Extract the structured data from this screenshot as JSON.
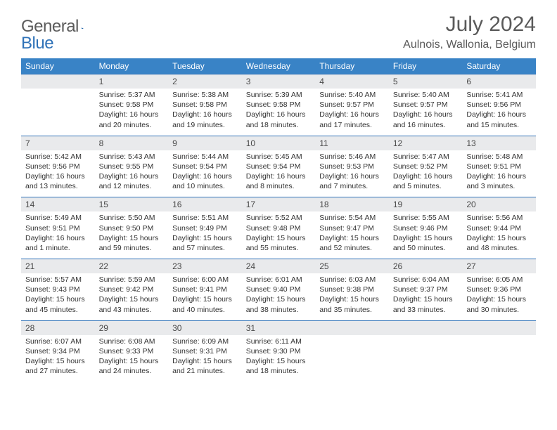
{
  "logo": {
    "part1": "General",
    "part2": "Blue"
  },
  "title": "July 2024",
  "location": "Aulnois, Wallonia, Belgium",
  "colors": {
    "header_bg": "#3983c6",
    "header_text": "#ffffff",
    "numrow_bg": "#e9eaec",
    "border": "#2f72b8",
    "body_text": "#333333",
    "logo_gray": "#5b5b5b",
    "logo_blue": "#2f72b8"
  },
  "dow": [
    "Sunday",
    "Monday",
    "Tuesday",
    "Wednesday",
    "Thursday",
    "Friday",
    "Saturday"
  ],
  "weeks": [
    {
      "nums": [
        "",
        "1",
        "2",
        "3",
        "4",
        "5",
        "6"
      ],
      "cells": [
        null,
        {
          "sr": "Sunrise: 5:37 AM",
          "ss": "Sunset: 9:58 PM",
          "dl": "Daylight: 16 hours and 20 minutes."
        },
        {
          "sr": "Sunrise: 5:38 AM",
          "ss": "Sunset: 9:58 PM",
          "dl": "Daylight: 16 hours and 19 minutes."
        },
        {
          "sr": "Sunrise: 5:39 AM",
          "ss": "Sunset: 9:58 PM",
          "dl": "Daylight: 16 hours and 18 minutes."
        },
        {
          "sr": "Sunrise: 5:40 AM",
          "ss": "Sunset: 9:57 PM",
          "dl": "Daylight: 16 hours and 17 minutes."
        },
        {
          "sr": "Sunrise: 5:40 AM",
          "ss": "Sunset: 9:57 PM",
          "dl": "Daylight: 16 hours and 16 minutes."
        },
        {
          "sr": "Sunrise: 5:41 AM",
          "ss": "Sunset: 9:56 PM",
          "dl": "Daylight: 16 hours and 15 minutes."
        }
      ]
    },
    {
      "nums": [
        "7",
        "8",
        "9",
        "10",
        "11",
        "12",
        "13"
      ],
      "cells": [
        {
          "sr": "Sunrise: 5:42 AM",
          "ss": "Sunset: 9:56 PM",
          "dl": "Daylight: 16 hours and 13 minutes."
        },
        {
          "sr": "Sunrise: 5:43 AM",
          "ss": "Sunset: 9:55 PM",
          "dl": "Daylight: 16 hours and 12 minutes."
        },
        {
          "sr": "Sunrise: 5:44 AM",
          "ss": "Sunset: 9:54 PM",
          "dl": "Daylight: 16 hours and 10 minutes."
        },
        {
          "sr": "Sunrise: 5:45 AM",
          "ss": "Sunset: 9:54 PM",
          "dl": "Daylight: 16 hours and 8 minutes."
        },
        {
          "sr": "Sunrise: 5:46 AM",
          "ss": "Sunset: 9:53 PM",
          "dl": "Daylight: 16 hours and 7 minutes."
        },
        {
          "sr": "Sunrise: 5:47 AM",
          "ss": "Sunset: 9:52 PM",
          "dl": "Daylight: 16 hours and 5 minutes."
        },
        {
          "sr": "Sunrise: 5:48 AM",
          "ss": "Sunset: 9:51 PM",
          "dl": "Daylight: 16 hours and 3 minutes."
        }
      ]
    },
    {
      "nums": [
        "14",
        "15",
        "16",
        "17",
        "18",
        "19",
        "20"
      ],
      "cells": [
        {
          "sr": "Sunrise: 5:49 AM",
          "ss": "Sunset: 9:51 PM",
          "dl": "Daylight: 16 hours and 1 minute."
        },
        {
          "sr": "Sunrise: 5:50 AM",
          "ss": "Sunset: 9:50 PM",
          "dl": "Daylight: 15 hours and 59 minutes."
        },
        {
          "sr": "Sunrise: 5:51 AM",
          "ss": "Sunset: 9:49 PM",
          "dl": "Daylight: 15 hours and 57 minutes."
        },
        {
          "sr": "Sunrise: 5:52 AM",
          "ss": "Sunset: 9:48 PM",
          "dl": "Daylight: 15 hours and 55 minutes."
        },
        {
          "sr": "Sunrise: 5:54 AM",
          "ss": "Sunset: 9:47 PM",
          "dl": "Daylight: 15 hours and 52 minutes."
        },
        {
          "sr": "Sunrise: 5:55 AM",
          "ss": "Sunset: 9:46 PM",
          "dl": "Daylight: 15 hours and 50 minutes."
        },
        {
          "sr": "Sunrise: 5:56 AM",
          "ss": "Sunset: 9:44 PM",
          "dl": "Daylight: 15 hours and 48 minutes."
        }
      ]
    },
    {
      "nums": [
        "21",
        "22",
        "23",
        "24",
        "25",
        "26",
        "27"
      ],
      "cells": [
        {
          "sr": "Sunrise: 5:57 AM",
          "ss": "Sunset: 9:43 PM",
          "dl": "Daylight: 15 hours and 45 minutes."
        },
        {
          "sr": "Sunrise: 5:59 AM",
          "ss": "Sunset: 9:42 PM",
          "dl": "Daylight: 15 hours and 43 minutes."
        },
        {
          "sr": "Sunrise: 6:00 AM",
          "ss": "Sunset: 9:41 PM",
          "dl": "Daylight: 15 hours and 40 minutes."
        },
        {
          "sr": "Sunrise: 6:01 AM",
          "ss": "Sunset: 9:40 PM",
          "dl": "Daylight: 15 hours and 38 minutes."
        },
        {
          "sr": "Sunrise: 6:03 AM",
          "ss": "Sunset: 9:38 PM",
          "dl": "Daylight: 15 hours and 35 minutes."
        },
        {
          "sr": "Sunrise: 6:04 AM",
          "ss": "Sunset: 9:37 PM",
          "dl": "Daylight: 15 hours and 33 minutes."
        },
        {
          "sr": "Sunrise: 6:05 AM",
          "ss": "Sunset: 9:36 PM",
          "dl": "Daylight: 15 hours and 30 minutes."
        }
      ]
    },
    {
      "nums": [
        "28",
        "29",
        "30",
        "31",
        "",
        "",
        ""
      ],
      "cells": [
        {
          "sr": "Sunrise: 6:07 AM",
          "ss": "Sunset: 9:34 PM",
          "dl": "Daylight: 15 hours and 27 minutes."
        },
        {
          "sr": "Sunrise: 6:08 AM",
          "ss": "Sunset: 9:33 PM",
          "dl": "Daylight: 15 hours and 24 minutes."
        },
        {
          "sr": "Sunrise: 6:09 AM",
          "ss": "Sunset: 9:31 PM",
          "dl": "Daylight: 15 hours and 21 minutes."
        },
        {
          "sr": "Sunrise: 6:11 AM",
          "ss": "Sunset: 9:30 PM",
          "dl": "Daylight: 15 hours and 18 minutes."
        },
        null,
        null,
        null
      ]
    }
  ]
}
